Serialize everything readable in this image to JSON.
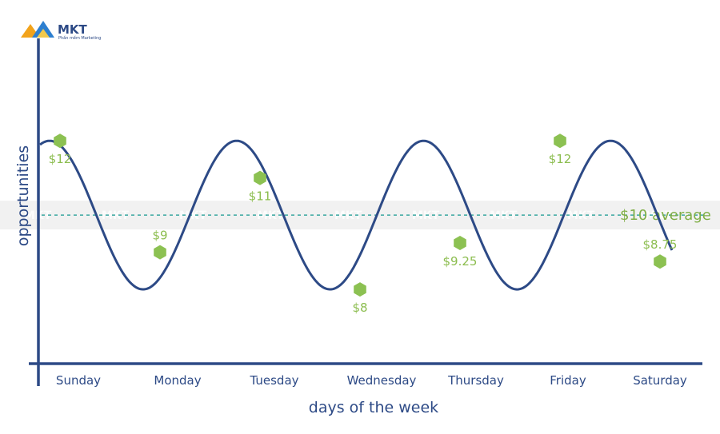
{
  "logo": {
    "brand": "MKT",
    "tagline": "Phần mềm Marketing"
  },
  "watermark": {
    "text": "MKT"
  },
  "chart_data": {
    "type": "line",
    "xlabel": "days of the week",
    "ylabel": "opportunities",
    "categories": [
      "Sunday",
      "Monday",
      "Tuesday",
      "Wednesday",
      "Thursday",
      "Friday",
      "Saturday"
    ],
    "curve": {
      "description_free": true,
      "amplitude_max": 12,
      "amplitude_min": 8
    },
    "series": [
      {
        "values": [
          12,
          9,
          11,
          8,
          9.25,
          12,
          8.75
        ],
        "labels": [
          "$12",
          "$9",
          "$11",
          "$8",
          "$9.25",
          "$12",
          "$8.75"
        ]
      }
    ],
    "average": {
      "value": 10,
      "label": "$10 average"
    },
    "ylim": [
      6,
      14.5
    ],
    "colors": {
      "curve": "#2d4a86",
      "points": "#8cc152",
      "average_line": "#3aa6a0",
      "axis": "#2d4a86",
      "labels": "#8cbd4f"
    }
  }
}
